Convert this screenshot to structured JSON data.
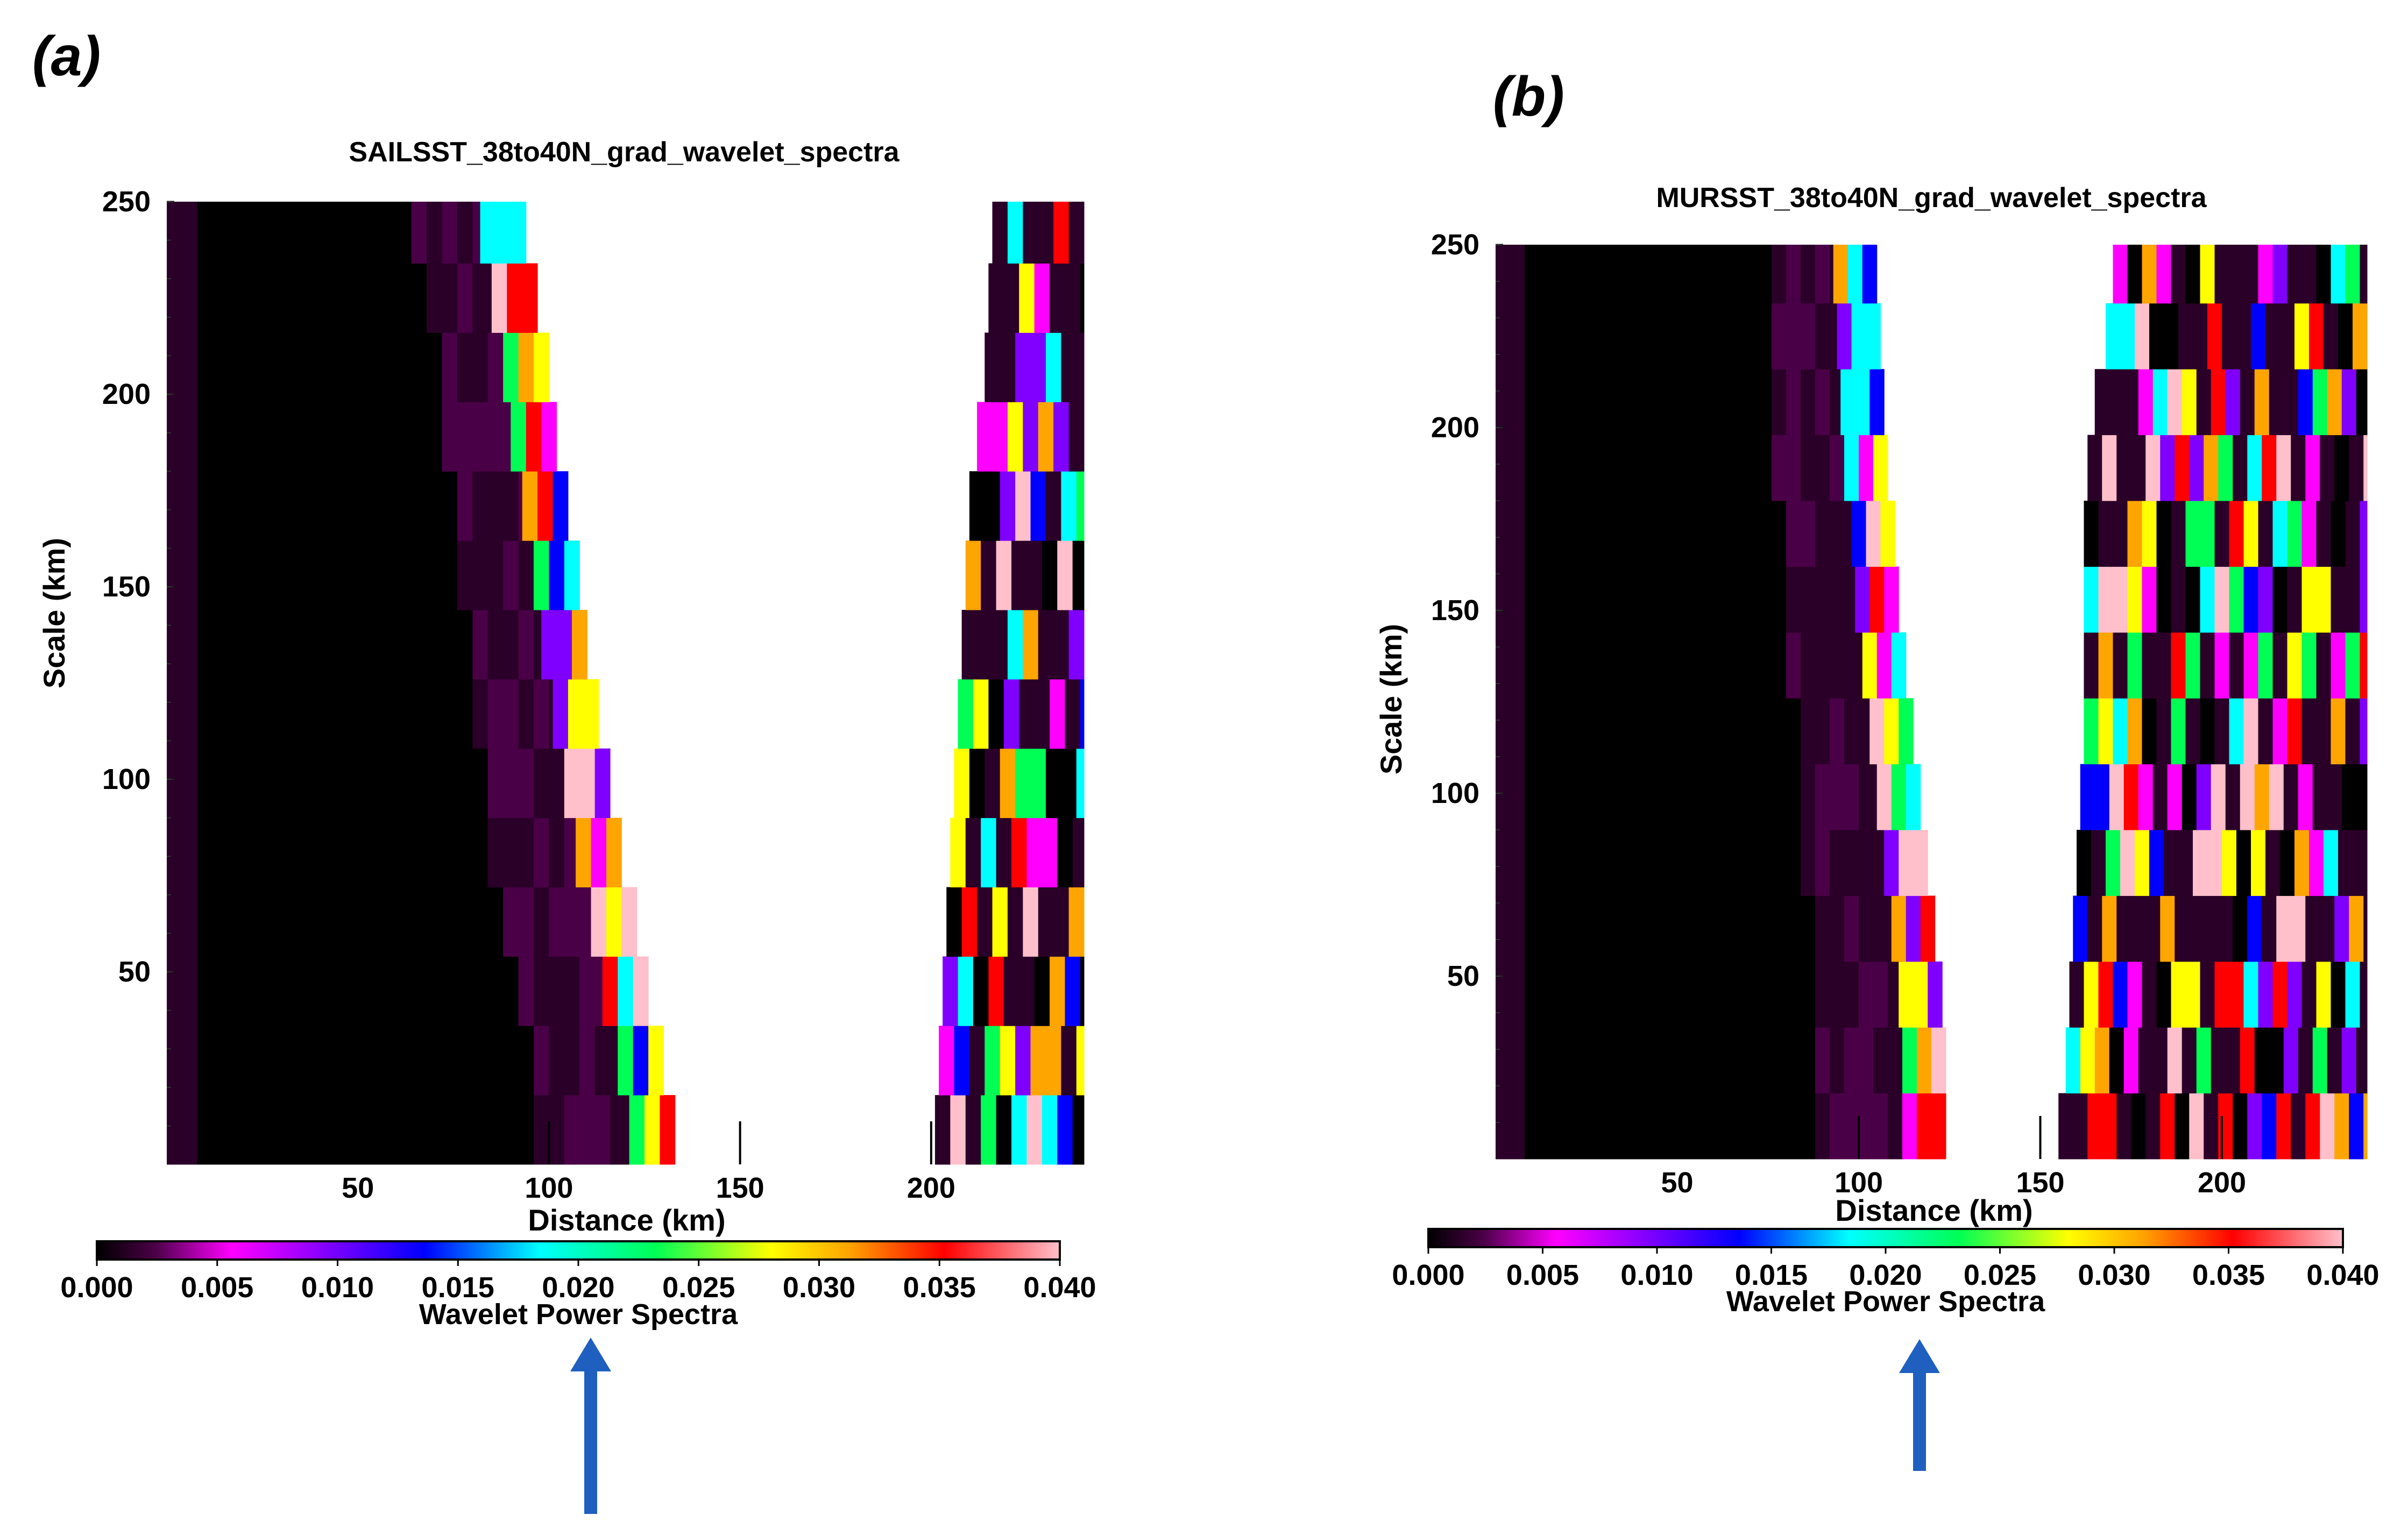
{
  "panel_labels": [
    "(a)",
    "(b)"
  ],
  "colors": {
    "arrow": "#1f5fbf",
    "colormap": [
      "#000000",
      "#4a0046",
      "#ff00ff",
      "#8000ff",
      "#0000ff",
      "#00ffff",
      "#00ff55",
      "#ffff00",
      "#ffa500",
      "#ff0000",
      "#ffc0cb"
    ]
  },
  "chart_data": [
    {
      "type": "heatmap",
      "title": "SAILSST_38to40N_grad_wavelet_spectra",
      "xlabel": "Distance (km)",
      "ylabel": "Scale (km)",
      "xlim": [
        0,
        240
      ],
      "ylim": [
        0,
        250
      ],
      "xticks": [
        50,
        100,
        150,
        200
      ],
      "yticks": [
        50,
        100,
        150,
        200,
        250
      ],
      "xtick_labels": [
        "50",
        "100",
        "150",
        "200"
      ],
      "ytick_labels": [
        "50",
        "100",
        "150",
        "200",
        "250"
      ],
      "colorbar": {
        "label": "Wavelet Power Spectra",
        "range": [
          0.0,
          0.04
        ],
        "ticks": [
          "0.000",
          "0.005",
          "0.010",
          "0.015",
          "0.020",
          "0.025",
          "0.030",
          "0.035",
          "0.040"
        ]
      },
      "rows_y": [
        9,
        27,
        45,
        63,
        81,
        99,
        117,
        135,
        153,
        171,
        189,
        207,
        225,
        243
      ],
      "boundary_km": [
        121,
        118,
        114,
        111,
        107,
        104,
        101,
        98,
        96,
        93,
        90,
        88,
        85,
        82
      ],
      "right_band_start_km": [
        201,
        202,
        203,
        204,
        205,
        206,
        207,
        208,
        209,
        210,
        212,
        214,
        215,
        216
      ],
      "notes": "Black low-power region (~0.000) at small distances up to boundary; colorful high-power cells near boundary and at right edge; white = no data",
      "annotation": "arrow below colorbar near 0.020"
    },
    {
      "type": "heatmap",
      "title": "MURSST_38to40N_grad_wavelet_spectra",
      "xlabel": "Distance (km)",
      "ylabel": "Scale (km)",
      "xlim": [
        0,
        240
      ],
      "ylim": [
        0,
        250
      ],
      "xticks": [
        50,
        100,
        150,
        200
      ],
      "yticks": [
        50,
        100,
        150,
        200,
        250
      ],
      "xtick_labels": [
        "50",
        "100",
        "150",
        "200"
      ],
      "ytick_labels": [
        "50",
        "100",
        "150",
        "200",
        "250"
      ],
      "colorbar": {
        "label": "Wavelet Power Spectra",
        "range": [
          0.0,
          0.04
        ],
        "ticks": [
          "0.000",
          "0.005",
          "0.010",
          "0.015",
          "0.020",
          "0.025",
          "0.030",
          "0.035",
          "0.040"
        ]
      },
      "rows_y": [
        9,
        27,
        45,
        63,
        81,
        99,
        117,
        135,
        153,
        171,
        189,
        207,
        225,
        243
      ],
      "boundary_km": [
        112,
        112,
        111,
        109,
        107,
        105,
        103,
        101,
        99,
        98,
        96,
        95,
        94,
        93
      ],
      "right_band_start_km": [
        155,
        157,
        158,
        159,
        160,
        161,
        162,
        162,
        162,
        162,
        163,
        165,
        168,
        170
      ],
      "notes": "Black region up to boundary; dense colorful right region from ~160 km; top band 230-250 spans to right",
      "annotation": "arrow below colorbar near 0.020"
    }
  ]
}
